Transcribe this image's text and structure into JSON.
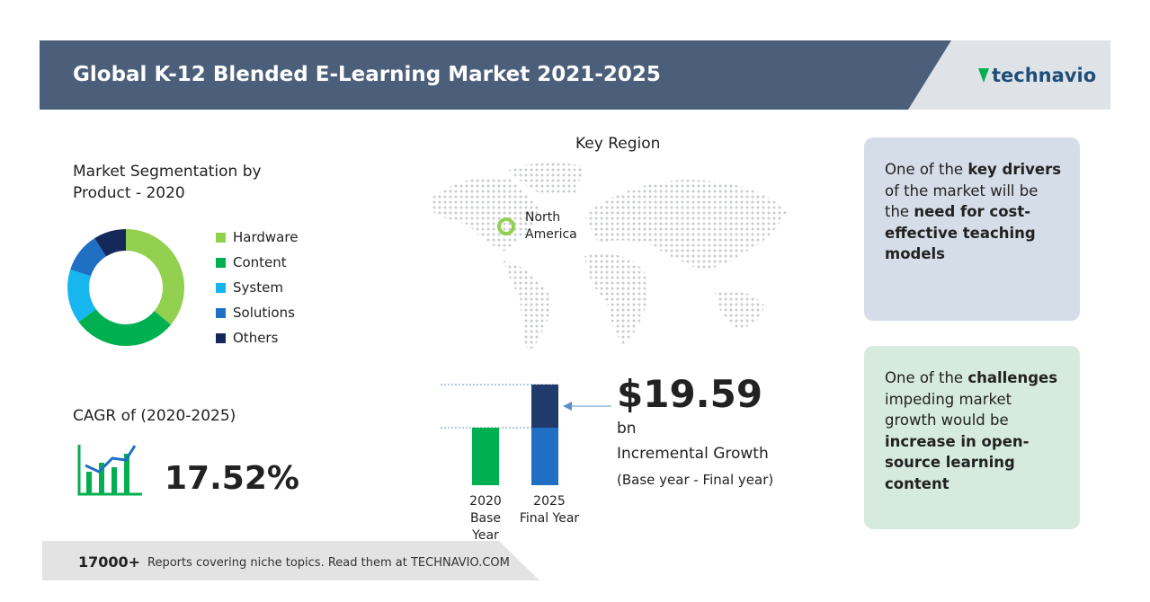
{
  "header": {
    "title": "Global K-12 Blended E-Learning Market 2021-2025",
    "logo": "technavio"
  },
  "segmentation": {
    "title": "Market Segmentation by Product - 2020",
    "items": [
      {
        "name": "Hardware",
        "color": "#92d050",
        "value": 36
      },
      {
        "name": "Content",
        "color": "#00b050",
        "value": 29
      },
      {
        "name": "System",
        "color": "#17b6ef",
        "value": 15
      },
      {
        "name": "Solutions",
        "color": "#1f6fc5",
        "value": 11
      },
      {
        "name": "Others",
        "color": "#14285a",
        "value": 9
      }
    ]
  },
  "cagr": {
    "label": "CAGR of (2020-2025)",
    "value": "17.52%"
  },
  "key_region": {
    "title": "Key Region",
    "region": "North America"
  },
  "growth": {
    "bars": [
      {
        "year": "2020",
        "label": "Base Year"
      },
      {
        "year": "2025",
        "label": "Final Year"
      }
    ],
    "amount": "$19.59",
    "unit": "bn",
    "label": "Incremental Growth",
    "note": "(Base year - Final year)"
  },
  "drivers": {
    "parts": [
      "One of the ",
      "key drivers",
      " of the market will be the ",
      "need for cost-effective teaching models"
    ]
  },
  "challenges": {
    "parts": [
      "One of the ",
      "challenges",
      " impeding market growth would be ",
      "increase in open-source learning content"
    ]
  },
  "footer": {
    "count": "17000+",
    "text": "Reports covering niche topics. Read them at TECHNAVIO.COM"
  }
}
